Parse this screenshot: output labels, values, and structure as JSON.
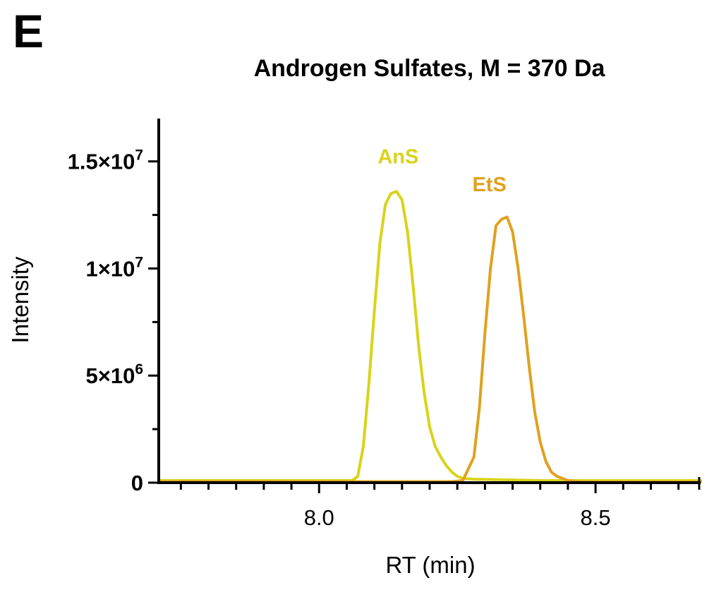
{
  "panel_label": "E",
  "chart_data": {
    "type": "line",
    "title": "Androgen Sulfates, M = 370 Da",
    "xlabel": "RT (min)",
    "ylabel": "Intensity",
    "xlim": [
      7.71,
      8.69
    ],
    "ylim": [
      0,
      17000000
    ],
    "x_ticks": [
      {
        "value": 8.0,
        "label": "8.0"
      },
      {
        "value": 8.5,
        "label": "8.5"
      }
    ],
    "y_ticks": [
      {
        "value": 0,
        "base": "0",
        "exp": ""
      },
      {
        "value": 5000000,
        "base": "5×10",
        "exp": "6"
      },
      {
        "value": 10000000,
        "base": "1×10",
        "exp": "7"
      },
      {
        "value": 15000000,
        "base": "1.5×10",
        "exp": "7"
      }
    ],
    "grid": false,
    "series": [
      {
        "name": "AnS",
        "color": "#D9D31A",
        "label_pos": {
          "x": 8.143,
          "y": 14900000
        },
        "x": [
          7.71,
          8.06,
          8.07,
          8.08,
          8.09,
          8.1,
          8.11,
          8.12,
          8.13,
          8.14,
          8.15,
          8.16,
          8.17,
          8.18,
          8.19,
          8.2,
          8.21,
          8.22,
          8.23,
          8.24,
          8.25,
          8.26,
          8.28,
          8.3,
          8.35,
          8.4,
          8.69
        ],
        "values": [
          100000,
          100000,
          300000,
          1700000,
          4600000,
          8000000,
          11200000,
          13000000,
          13500000,
          13600000,
          13200000,
          11700000,
          9200000,
          6400000,
          4200000,
          2600000,
          1700000,
          1200000,
          800000,
          500000,
          300000,
          200000,
          160000,
          150000,
          130000,
          100000,
          100000
        ]
      },
      {
        "name": "EtS",
        "color": "#E0A11F",
        "label_pos": {
          "x": 8.308,
          "y": 13600000
        },
        "x": [
          7.71,
          8.03,
          8.24,
          8.26,
          8.28,
          8.29,
          8.3,
          8.31,
          8.32,
          8.33,
          8.34,
          8.35,
          8.36,
          8.37,
          8.38,
          8.39,
          8.4,
          8.41,
          8.42,
          8.43,
          8.44,
          8.45,
          8.47,
          8.5,
          8.69
        ],
        "values": [
          50000,
          50000,
          50000,
          100000,
          1200000,
          3500000,
          7000000,
          10000000,
          12000000,
          12300000,
          12400000,
          11700000,
          10000000,
          7800000,
          5400000,
          3300000,
          1900000,
          1000000,
          500000,
          300000,
          200000,
          100000,
          50000,
          30000,
          30000
        ]
      }
    ]
  }
}
